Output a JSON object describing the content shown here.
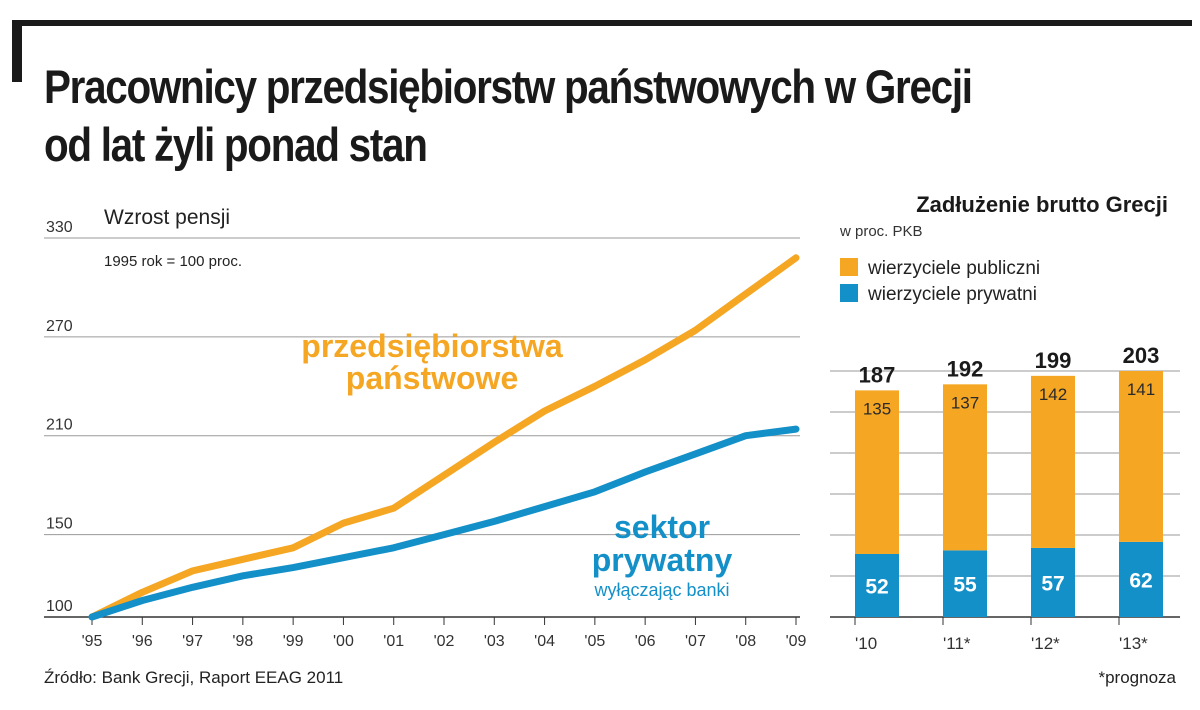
{
  "title_lines": [
    "Pracownicy przedsiębiorstw państwowych w Grecji",
    "od lat żyli ponad stan"
  ],
  "source": "Źródło: Bank Grecji, Raport EEAG 2011",
  "footnote": "*prognoza",
  "colors": {
    "orange": "#F5A623",
    "blue": "#1490C8",
    "grid": "#9a9a9a",
    "text": "#1a1a1a"
  },
  "chart_data": [
    {
      "type": "line",
      "title": "Wzrost pensji",
      "subtitle": "1995 rok = 100 proc.",
      "x": [
        "'95",
        "'96",
        "'97",
        "'98",
        "'99",
        "'00",
        "'01",
        "'02",
        "'03",
        "'04",
        "'05",
        "'06",
        "'07",
        "'08",
        "'09"
      ],
      "yticks": [
        100,
        150,
        210,
        270,
        330
      ],
      "ylim": [
        100,
        330
      ],
      "grid": true,
      "series": [
        {
          "name": "przedsiębiorstwa państwowe",
          "label_lines": [
            "przedsiębiorstwa",
            "państwowe"
          ],
          "color": "#F5A623",
          "values": [
            100,
            115,
            128,
            135,
            142,
            157,
            166,
            186,
            206,
            225,
            240,
            256,
            274,
            296,
            318
          ]
        },
        {
          "name": "sektor prywatny",
          "label_lines": [
            "sektor",
            "prywatny"
          ],
          "note": "wyłączając banki",
          "color": "#1490C8",
          "values": [
            100,
            110,
            118,
            125,
            130,
            136,
            142,
            150,
            158,
            167,
            176,
            188,
            199,
            210,
            214
          ]
        }
      ]
    },
    {
      "type": "bar",
      "title": "Zadłużenie brutto Grecji",
      "subtitle": "w proc. PKB",
      "categories": [
        "'10",
        "'11*",
        "'12*",
        "'13*"
      ],
      "totals": [
        187,
        192,
        199,
        203
      ],
      "stacked": true,
      "grid": true,
      "ylim": [
        0,
        203
      ],
      "series": [
        {
          "name": "wierzyciele prywatni",
          "color": "#1490C8",
          "values": [
            52,
            55,
            57,
            62
          ]
        },
        {
          "name": "wierzyciele publiczni",
          "color": "#F5A623",
          "values": [
            135,
            137,
            142,
            141
          ]
        }
      ],
      "legend_order": [
        "wierzyciele publiczni",
        "wierzyciele prywatni"
      ]
    }
  ]
}
